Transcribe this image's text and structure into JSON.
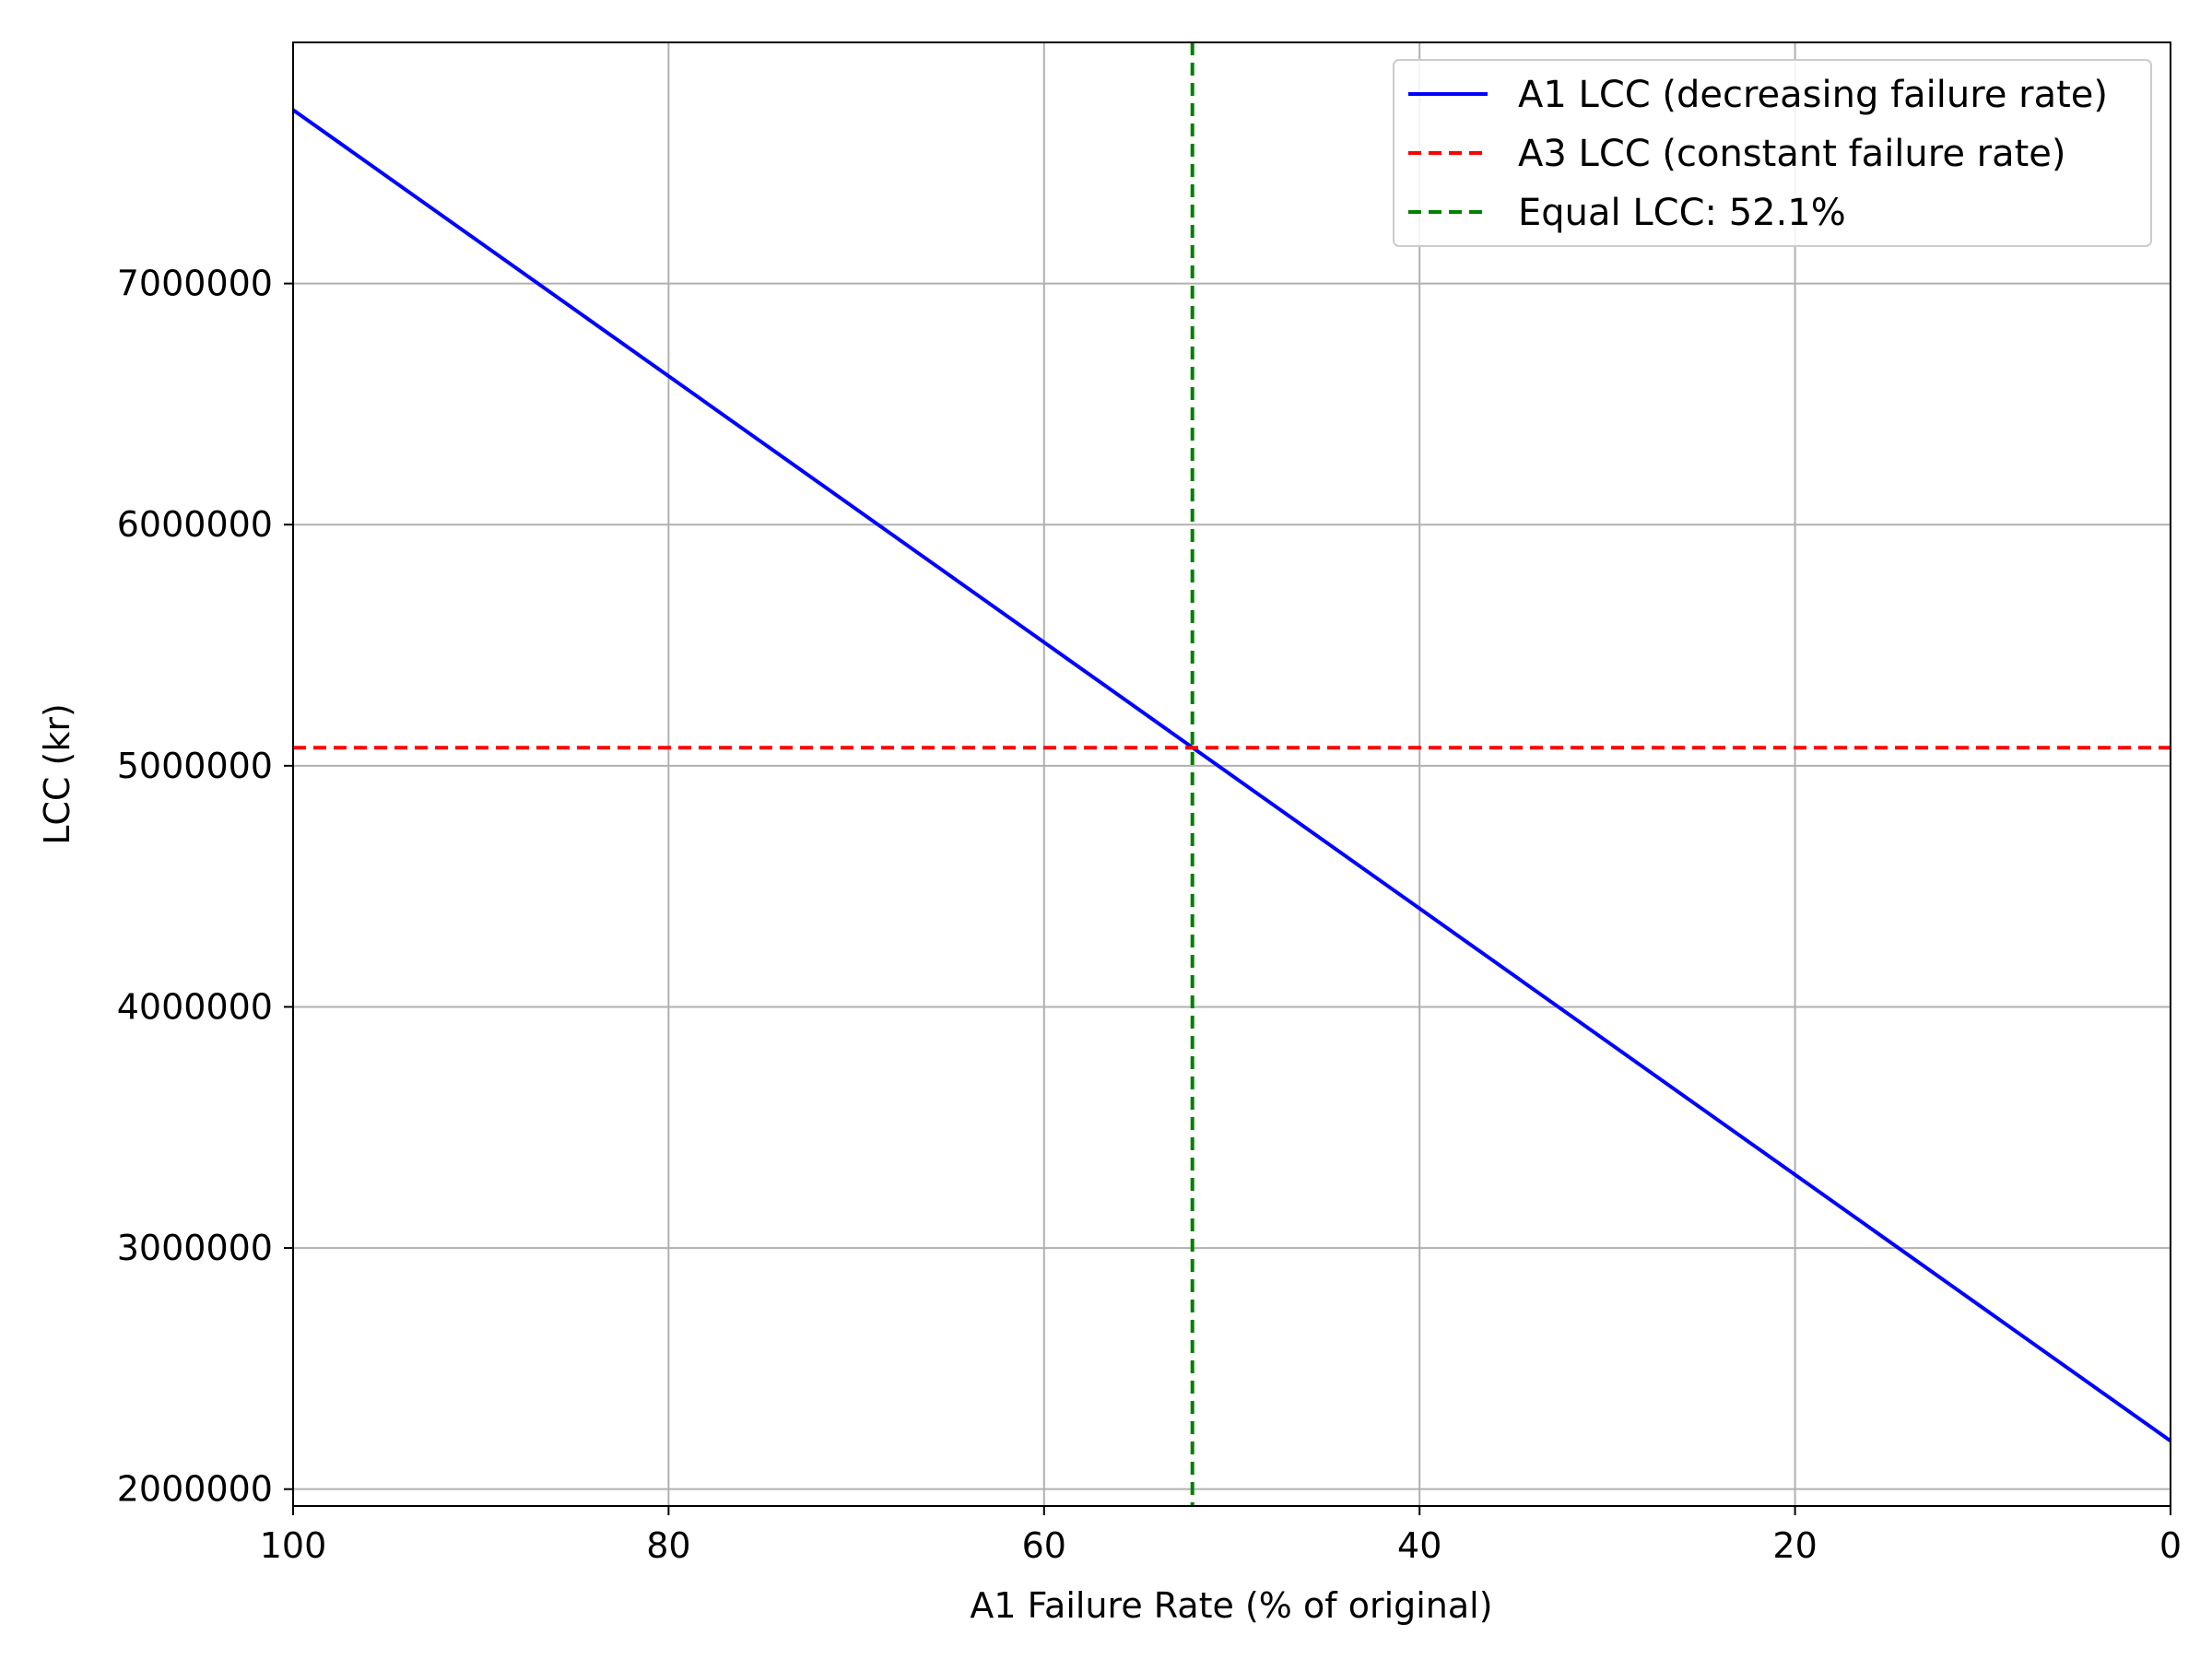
{
  "chart_data": {
    "type": "line",
    "title": "",
    "xlabel": "A1 Failure Rate (% of original)",
    "ylabel": "LCC (kr)",
    "xlim": [
      100,
      0
    ],
    "ylim": [
      1930000,
      8000000
    ],
    "x_reversed": true,
    "grid": true,
    "legend_placement": "top-right",
    "x_ticks": [
      100,
      80,
      60,
      40,
      20,
      0
    ],
    "x_tick_labels": [
      "100",
      "80",
      "60",
      "40",
      "20",
      "0"
    ],
    "y_ticks": [
      2000000,
      3000000,
      4000000,
      5000000,
      6000000,
      7000000
    ],
    "y_tick_labels": [
      "2000000",
      "3000000",
      "4000000",
      "5000000",
      "6000000",
      "7000000"
    ],
    "series": [
      {
        "name": "A1 LCC (decreasing failure rate)",
        "kind": "line",
        "style": "solid",
        "color": "#0000ff",
        "x": [
          100,
          0
        ],
        "y": [
          7720000,
          2200000
        ]
      },
      {
        "name": "A3 LCC (constant failure rate)",
        "kind": "hline",
        "style": "dashed",
        "color": "#ff0000",
        "y": 5075000
      },
      {
        "name": "Equal LCC: 52.1%",
        "kind": "vline",
        "style": "dashed",
        "color": "#008000",
        "x": 52.1
      }
    ]
  }
}
